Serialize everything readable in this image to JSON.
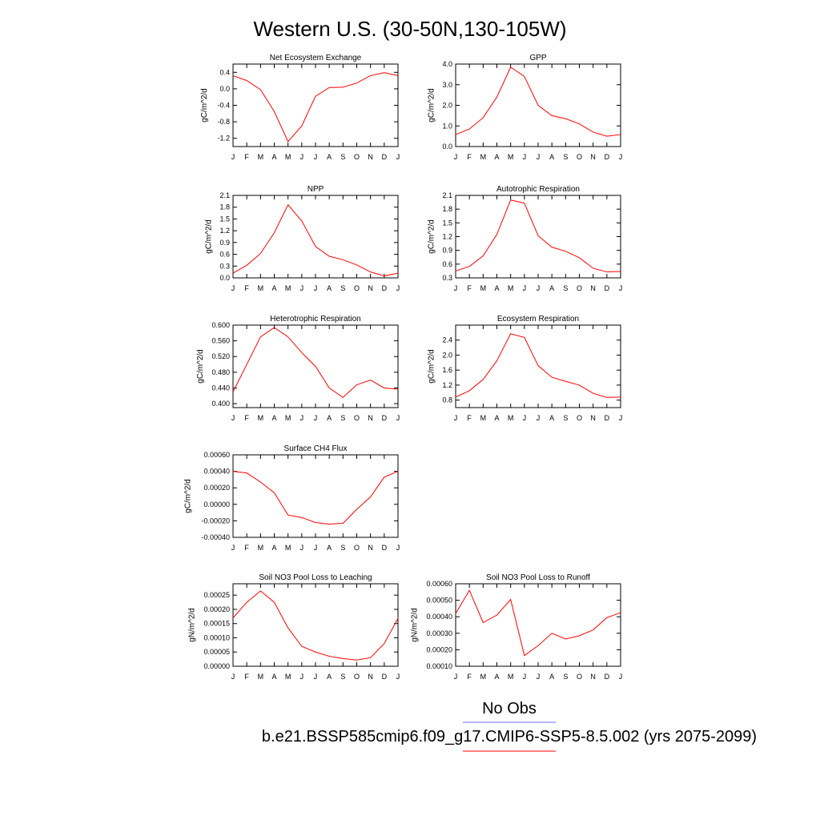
{
  "figure": {
    "title": "Western U.S. (30-50N,130-105W)",
    "legend": [
      {
        "label": "No Obs",
        "color": "#6b6bff"
      },
      {
        "label": "b.e21.BSSP585cmip6.f09_g17.CMIP6-SSP5-8.5.002 (yrs 2075-2099)",
        "color": "#ff0000"
      }
    ]
  },
  "chart_data": [
    {
      "type": "line",
      "title": "Net Ecosystem Exchange",
      "ylabel": "gC/m^2/d",
      "categories": [
        "J",
        "F",
        "M",
        "A",
        "M",
        "J",
        "J",
        "A",
        "S",
        "O",
        "N",
        "D",
        "J"
      ],
      "ylim": [
        -1.4,
        0.6
      ],
      "yticks": [
        0.4,
        0.0,
        -0.4,
        -0.8,
        -1.2
      ],
      "ytick_labels": [
        "0.4",
        "0.0",
        "-0.4",
        "-0.8",
        "-1.2"
      ],
      "series": [
        {
          "color": "#ff0000",
          "values": [
            0.32,
            0.2,
            -0.02,
            -0.55,
            -1.28,
            -0.9,
            -0.18,
            0.03,
            0.04,
            0.14,
            0.32,
            0.39,
            0.32
          ]
        }
      ]
    },
    {
      "type": "line",
      "title": "GPP",
      "ylabel": "gC/m^2/d",
      "categories": [
        "J",
        "F",
        "M",
        "A",
        "M",
        "J",
        "J",
        "A",
        "S",
        "O",
        "N",
        "D",
        "J"
      ],
      "ylim": [
        0.0,
        4.0
      ],
      "yticks": [
        4.0,
        3.0,
        2.0,
        1.0,
        0.0
      ],
      "ytick_labels": [
        "4.0",
        "3.0",
        "2.0",
        "1.0",
        "0.0"
      ],
      "series": [
        {
          "color": "#ff0000",
          "values": [
            0.58,
            0.85,
            1.4,
            2.4,
            3.85,
            3.4,
            2.0,
            1.5,
            1.35,
            1.1,
            0.7,
            0.5,
            0.58
          ]
        }
      ]
    },
    {
      "type": "line",
      "title": "NPP",
      "ylabel": "gC/m^2/d",
      "categories": [
        "J",
        "F",
        "M",
        "A",
        "M",
        "J",
        "J",
        "A",
        "S",
        "O",
        "N",
        "D",
        "J"
      ],
      "ylim": [
        0.0,
        2.1
      ],
      "yticks": [
        2.1,
        1.8,
        1.5,
        1.2,
        0.9,
        0.6,
        0.3,
        0.0
      ],
      "ytick_labels": [
        "2.1",
        "1.8",
        "1.5",
        "1.2",
        "0.9",
        "0.6",
        "0.3",
        "0.0"
      ],
      "series": [
        {
          "color": "#ff0000",
          "values": [
            0.12,
            0.32,
            0.62,
            1.15,
            1.86,
            1.45,
            0.8,
            0.55,
            0.46,
            0.33,
            0.15,
            0.05,
            0.12
          ]
        }
      ]
    },
    {
      "type": "line",
      "title": "Autotrophic Respiration",
      "ylabel": "gC/m^2/d",
      "categories": [
        "J",
        "F",
        "M",
        "A",
        "M",
        "J",
        "J",
        "A",
        "S",
        "O",
        "N",
        "D",
        "J"
      ],
      "ylim": [
        0.3,
        2.1
      ],
      "yticks": [
        2.1,
        1.8,
        1.5,
        1.2,
        0.9,
        0.6,
        0.3
      ],
      "ytick_labels": [
        "2.1",
        "1.8",
        "1.5",
        "1.2",
        "0.9",
        "0.6",
        "0.3"
      ],
      "series": [
        {
          "color": "#ff0000",
          "values": [
            0.45,
            0.55,
            0.78,
            1.25,
            2.0,
            1.93,
            1.22,
            0.97,
            0.88,
            0.74,
            0.51,
            0.43,
            0.44
          ]
        }
      ]
    },
    {
      "type": "line",
      "title": "Heterotrophic Respiration",
      "ylabel": "gC/m^2/d",
      "categories": [
        "J",
        "F",
        "M",
        "A",
        "M",
        "J",
        "J",
        "A",
        "S",
        "O",
        "N",
        "D",
        "J"
      ],
      "ylim": [
        0.39,
        0.6
      ],
      "yticks": [
        0.6,
        0.56,
        0.52,
        0.48,
        0.44,
        0.4
      ],
      "ytick_labels": [
        "0.600",
        "0.560",
        "0.520",
        "0.480",
        "0.440",
        "0.400"
      ],
      "series": [
        {
          "color": "#ff0000",
          "values": [
            0.43,
            0.5,
            0.57,
            0.594,
            0.57,
            0.53,
            0.495,
            0.44,
            0.416,
            0.448,
            0.46,
            0.44,
            0.437
          ]
        }
      ]
    },
    {
      "type": "line",
      "title": "Ecosystem Respiration",
      "ylabel": "gC/m^2/d",
      "categories": [
        "J",
        "F",
        "M",
        "A",
        "M",
        "J",
        "J",
        "A",
        "S",
        "O",
        "N",
        "D",
        "J"
      ],
      "ylim": [
        0.6,
        2.8
      ],
      "yticks": [
        2.4,
        2.0,
        1.6,
        1.2,
        0.8
      ],
      "ytick_labels": [
        "2.4",
        "2.0",
        "1.6",
        "1.2",
        "0.8"
      ],
      "series": [
        {
          "color": "#ff0000",
          "values": [
            0.88,
            1.05,
            1.35,
            1.85,
            2.57,
            2.47,
            1.72,
            1.41,
            1.3,
            1.2,
            0.98,
            0.87,
            0.88
          ]
        }
      ]
    },
    {
      "type": "line",
      "title": "Surface CH4 Flux",
      "ylabel": "gC/m^2/d",
      "categories": [
        "J",
        "F",
        "M",
        "A",
        "M",
        "J",
        "J",
        "A",
        "S",
        "O",
        "N",
        "D",
        "J"
      ],
      "ylim": [
        -0.0004,
        0.0006
      ],
      "yticks": [
        0.0006,
        0.0004,
        0.0002,
        0.0,
        -0.0002,
        -0.0004
      ],
      "ytick_labels": [
        "0.00060",
        "0.00040",
        "0.00020",
        "0.00000",
        "-0.00020",
        "-0.00040"
      ],
      "series": [
        {
          "color": "#ff0000",
          "values": [
            0.0004,
            0.00038,
            0.00027,
            0.00014,
            -0.00013,
            -0.00016,
            -0.00022,
            -0.00024,
            -0.00023,
            -6e-05,
            9e-05,
            0.00033,
            0.0004
          ]
        }
      ]
    },
    {
      "type": "line",
      "title": "Soil NO3 Pool Loss to Leaching",
      "ylabel": "gN/m^2/d",
      "categories": [
        "J",
        "F",
        "M",
        "A",
        "M",
        "J",
        "J",
        "A",
        "S",
        "O",
        "N",
        "D",
        "J"
      ],
      "ylim": [
        0.0,
        0.00029
      ],
      "yticks": [
        0.00025,
        0.0002,
        0.00015,
        0.0001,
        5e-05,
        0.0
      ],
      "ytick_labels": [
        "0.00025",
        "0.00020",
        "0.00015",
        "0.00010",
        "0.00005",
        "0.00000"
      ],
      "series": [
        {
          "color": "#ff0000",
          "values": [
            0.00017,
            0.000225,
            0.000265,
            0.000225,
            0.000135,
            7e-05,
            5e-05,
            3.5e-05,
            2.7e-05,
            2.2e-05,
            3e-05,
            8e-05,
            0.000168
          ]
        }
      ]
    },
    {
      "type": "line",
      "title": "Soil NO3 Pool Loss to Runoff",
      "ylabel": "gN/m^2/d",
      "categories": [
        "J",
        "F",
        "M",
        "A",
        "M",
        "J",
        "J",
        "A",
        "S",
        "O",
        "N",
        "D",
        "J"
      ],
      "ylim": [
        0.0001,
        0.0006
      ],
      "yticks": [
        0.0006,
        0.0005,
        0.0004,
        0.0003,
        0.0002,
        0.0001
      ],
      "ytick_labels": [
        "0.00060",
        "0.00050",
        "0.00040",
        "0.00030",
        "0.00020",
        "0.00010"
      ],
      "series": [
        {
          "color": "#ff0000",
          "values": [
            0.00042,
            0.00056,
            0.000365,
            0.00041,
            0.000505,
            0.000165,
            0.000225,
            0.0003,
            0.000265,
            0.000285,
            0.00032,
            0.000395,
            0.000425
          ]
        }
      ]
    }
  ]
}
